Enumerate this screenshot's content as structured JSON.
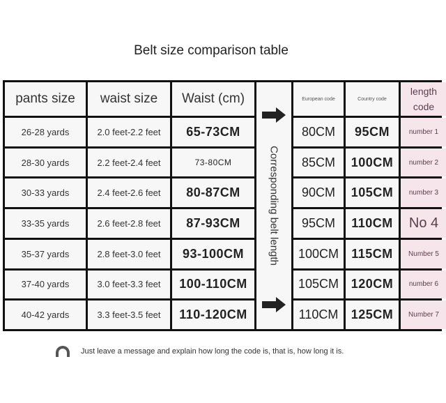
{
  "title": "Belt size comparison table",
  "headers": {
    "pants_size": "pants size",
    "waist_size": "waist size",
    "waist_cm": "Waist (cm)",
    "european_code": "European code",
    "country_code": "Country code",
    "length_code": "length code"
  },
  "middle_label": "Corresponding belt length",
  "rows": [
    {
      "pants": "26-28 yards",
      "waist": "2.0 feet-2.2 feet",
      "cm": "65-73CM",
      "eu": "80CM",
      "country": "95CM",
      "length": "number 1"
    },
    {
      "pants": "28-30 yards",
      "waist": "2.2 feet-2.4 feet",
      "cm": "73-80CM",
      "eu": "85CM",
      "country": "100CM",
      "length": "number 2"
    },
    {
      "pants": "30-33 yards",
      "waist": "2.4 feet-2.6 feet",
      "cm": "80-87CM",
      "eu": "90CM",
      "country": "105CM",
      "length": "number 3"
    },
    {
      "pants": "33-35 yards",
      "waist": "2.6 feet-2.8 feet",
      "cm": "87-93CM",
      "eu": "95CM",
      "country": "110CM",
      "length": "No 4"
    },
    {
      "pants": "35-37 yards",
      "waist": "2.8 feet-3.0 feet",
      "cm": "93-100CM",
      "eu": "100CM",
      "country": "115CM",
      "length": "Number 5"
    },
    {
      "pants": "37-40 yards",
      "waist": "3.0 feet-3.3 feet",
      "cm": "100-110CM",
      "eu": "105CM",
      "country": "120CM",
      "length": "number 6"
    },
    {
      "pants": "40-42 yards",
      "waist": "3.3 feet-3.5 feet",
      "cm": "110-120CM",
      "eu": "110CM",
      "country": "125CM",
      "length": "Number 7"
    }
  ],
  "note": "Just leave a message and explain how long the code is, that is, how long it is.",
  "icons": {
    "arrow": "right-arrow-icon",
    "rainbow": "rainbow-icon"
  }
}
